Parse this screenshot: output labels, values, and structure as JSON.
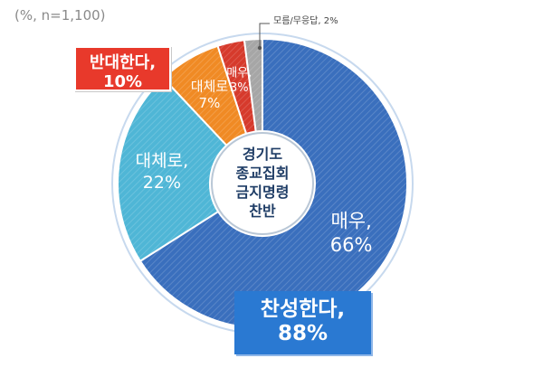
{
  "note": "(%, n=1,100)",
  "center_label": [
    "경기도",
    "종교집회",
    "금지명령",
    "찬반"
  ],
  "groups": {
    "support": {
      "line1": "찬성한다,",
      "line2": "88%"
    },
    "oppose": {
      "line1": "반대한다,",
      "line2": "10%"
    }
  },
  "chart_data": {
    "type": "pie",
    "slices": [
      {
        "label": "매우,",
        "value": 66,
        "value_text": "66%",
        "color": "#3a6fbd",
        "group": "support"
      },
      {
        "label": "대체로,",
        "value": 22,
        "value_text": "22%",
        "color": "#4fb6d6",
        "group": "support"
      },
      {
        "label": "대체로",
        "value": 7,
        "value_text": "7%",
        "color": "#f08a24",
        "group": "oppose"
      },
      {
        "label": "매우,",
        "value": 3,
        "value_text": "3%",
        "color": "#d63a2c",
        "group": "oppose"
      },
      {
        "label": "모름/무응답, 2%",
        "value": 2,
        "value_text": "2%",
        "color": "#a6a6a6",
        "group": "none"
      }
    ]
  }
}
